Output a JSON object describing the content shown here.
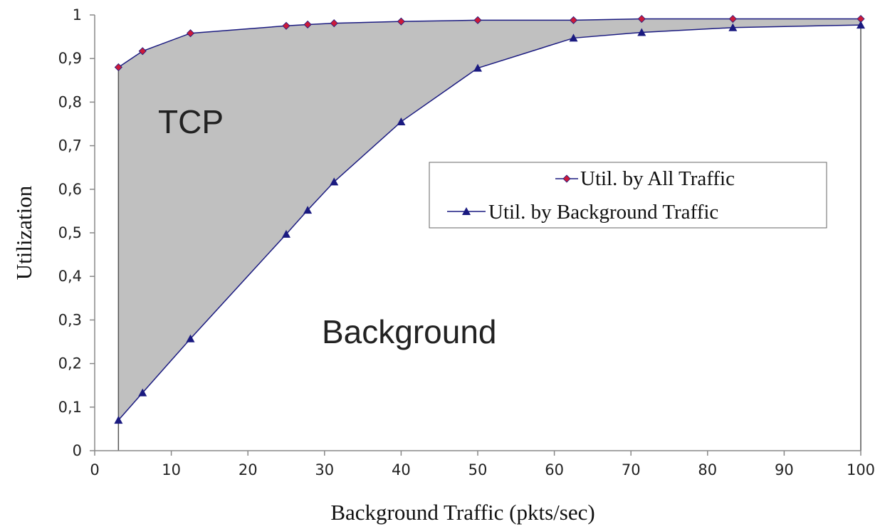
{
  "chart_data": {
    "type": "area",
    "xlabel": "Background Traffic (pkts/sec)",
    "ylabel": "Utilization",
    "xlim": [
      0,
      100
    ],
    "ylim": [
      0,
      1
    ],
    "x_ticks": [
      "0",
      "10",
      "20",
      "30",
      "40",
      "50",
      "60",
      "70",
      "80",
      "90",
      "100"
    ],
    "y_ticks": [
      "0",
      "0,1",
      "0,2",
      "0,3",
      "0,4",
      "0,5",
      "0,6",
      "0,7",
      "0,8",
      "0,9",
      "1"
    ],
    "grid": false,
    "legend_position": "center-right",
    "x": [
      3.1,
      6.25,
      12.5,
      25,
      27.8,
      31.25,
      40,
      50,
      62.5,
      71.4,
      83.3,
      100
    ],
    "series": [
      {
        "name": "Util. by All Traffic",
        "values": [
          0.88,
          0.917,
          0.958,
          0.975,
          0.978,
          0.981,
          0.985,
          0.988,
          0.988,
          0.991,
          0.991,
          0.991
        ],
        "color": "#1a1a80",
        "marker": "diamond",
        "marker_color": "#cc1a3a"
      },
      {
        "name": "Util. by Background Traffic",
        "values": [
          0.07,
          0.133,
          0.257,
          0.497,
          0.552,
          0.617,
          0.755,
          0.878,
          0.947,
          0.96,
          0.971,
          0.977
        ],
        "color": "#1a1a80",
        "marker": "triangle",
        "marker_color": "#1a1a80"
      }
    ],
    "annotations": [
      "TCP",
      "Background"
    ],
    "fill_between_color": "#c0c0c0"
  }
}
